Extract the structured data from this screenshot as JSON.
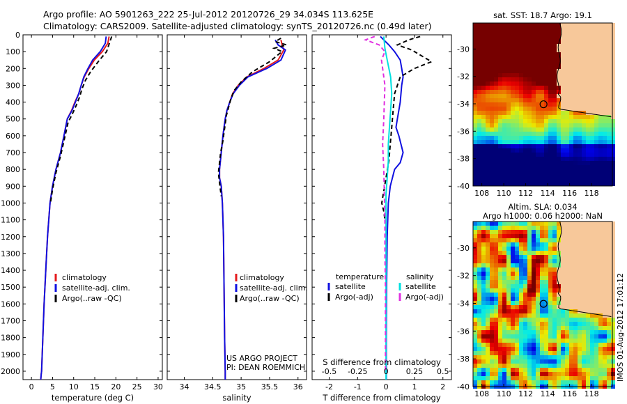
{
  "header": {
    "line1": "Argo profile: AO 5901263_222 25-Jul-2012 20120726_29 34.034S 113.625E",
    "line2": "Climatology: CARS2009. Satellite-adjusted climatology: synTS_20120726.nc (0.49d later)"
  },
  "side_label": "IMOS 01-Aug-2012 17:01:12",
  "colors": {
    "climatology": "#e41a1c",
    "satellite": "#1010e0",
    "argo": "#000000",
    "sal_sat": "#00e0e0",
    "sal_argo": "#e030e0"
  },
  "chart_data": [
    {
      "type": "line",
      "name": "temperature-panel",
      "xlabel": "temperature (deg C)",
      "ylabel": "",
      "xlim": [
        -2,
        31
      ],
      "ylim": [
        2050,
        0
      ],
      "xticks": [
        0,
        5,
        10,
        15,
        20,
        25,
        30
      ],
      "yticks": [
        0,
        100,
        200,
        300,
        400,
        500,
        600,
        700,
        800,
        900,
        1000,
        1100,
        1200,
        1300,
        1400,
        1500,
        1600,
        1700,
        1800,
        1900,
        2000
      ],
      "legend": [
        "climatology",
        "satellite-adj. clim.",
        "Argo(..raw -QC)"
      ],
      "legend_placement": "lower-center",
      "series": [
        {
          "name": "climatology",
          "color": "#e41a1c",
          "x": [
            18.4,
            18.1,
            16.8,
            14.9,
            13.6,
            12.5,
            11.8,
            11.2,
            10.3,
            9.5,
            8.5,
            7.7,
            6.9,
            5.8,
            5.0,
            4.4,
            3.8,
            3.4,
            3.0,
            2.7,
            2.4,
            2.3,
            2.2
          ],
          "y": [
            10,
            50,
            100,
            150,
            200,
            250,
            300,
            350,
            400,
            450,
            500,
            600,
            700,
            800,
            900,
            1000,
            1200,
            1400,
            1600,
            1800,
            2000,
            2020,
            2050
          ]
        },
        {
          "name": "satellite-adj. clim.",
          "color": "#1010e0",
          "x": [
            17.7,
            17.5,
            16.3,
            14.5,
            13.4,
            12.4,
            11.8,
            11.2,
            10.4,
            9.6,
            8.5,
            7.7,
            6.9,
            5.8,
            5.0,
            4.4,
            3.8,
            3.4,
            3.0,
            2.7,
            2.4,
            2.3,
            2.2
          ],
          "y": [
            10,
            50,
            100,
            150,
            200,
            250,
            300,
            350,
            400,
            450,
            500,
            600,
            700,
            800,
            900,
            1000,
            1200,
            1400,
            1600,
            1800,
            2000,
            2020,
            2050
          ]
        },
        {
          "name": "Argo(..raw -QC)",
          "color": "#000000",
          "dash": "6,4",
          "x": [
            19.0,
            18.6,
            17.8,
            15.8,
            14.0,
            12.8,
            12.0,
            11.4,
            10.6,
            9.7,
            8.7,
            7.8,
            6.9,
            5.8,
            5.0,
            4.5
          ],
          "y": [
            10,
            40,
            100,
            160,
            220,
            270,
            320,
            370,
            420,
            470,
            520,
            620,
            720,
            820,
            920,
            1000
          ]
        }
      ]
    },
    {
      "type": "line",
      "name": "salinity-panel",
      "xlabel": "salinity",
      "ylabel": "",
      "xlim": [
        33.7,
        36.15
      ],
      "ylim": [
        2050,
        0
      ],
      "xticks": [
        34,
        34.5,
        35,
        35.5,
        36
      ],
      "xticklabels": [
        "34",
        "34.5",
        "35",
        "35.5",
        "36"
      ],
      "legend": [
        "climatology",
        "satellite-adj. clim.",
        "Argo(..raw -QC)"
      ],
      "legend_placement": "lower-center",
      "annotation": [
        "US ARGO PROJECT",
        "PI: DEAN ROEMMICH"
      ],
      "series": [
        {
          "name": "climatology",
          "color": "#e41a1c",
          "x": [
            35.7,
            35.72,
            35.75,
            35.65,
            35.4,
            35.1,
            34.95,
            34.85,
            34.8,
            34.75,
            34.72,
            34.7,
            34.68,
            34.65,
            34.62,
            34.62,
            34.65,
            34.67,
            34.69,
            34.7,
            34.71,
            34.72,
            34.72
          ],
          "y": [
            30,
            60,
            90,
            150,
            200,
            250,
            300,
            350,
            400,
            450,
            500,
            550,
            600,
            700,
            800,
            850,
            900,
            1000,
            1200,
            1500,
            1800,
            2000,
            2050
          ]
        },
        {
          "name": "satellite-adj. clim.",
          "color": "#1010e0",
          "x": [
            35.6,
            35.65,
            35.78,
            35.7,
            35.45,
            35.12,
            34.97,
            34.86,
            34.8,
            34.75,
            34.72,
            34.7,
            34.68,
            34.65,
            34.62,
            34.62,
            34.65,
            34.67,
            34.69,
            34.7,
            34.71,
            34.72,
            34.72
          ],
          "y": [
            30,
            60,
            90,
            150,
            200,
            250,
            300,
            350,
            400,
            450,
            500,
            550,
            600,
            700,
            800,
            850,
            900,
            1000,
            1200,
            1500,
            1800,
            2000,
            2050
          ]
        },
        {
          "name": "Argo(..raw -QC)",
          "color": "#000000",
          "dash": "6,4",
          "x": [
            35.7,
            35.6,
            35.8,
            35.58,
            35.72,
            35.68,
            35.5,
            35.2,
            35.0,
            34.88,
            34.82,
            34.78,
            34.74,
            34.72,
            34.7,
            34.68,
            34.64,
            34.62,
            34.6,
            34.62,
            34.65
          ],
          "y": [
            20,
            40,
            60,
            80,
            100,
            110,
            160,
            220,
            280,
            330,
            380,
            430,
            480,
            530,
            580,
            630,
            700,
            760,
            820,
            880,
            960
          ]
        }
      ]
    },
    {
      "type": "line",
      "name": "difference-panel",
      "xlabel": "T difference from climatology",
      "x2label": "S difference from climatology",
      "xlim": [
        -2.6,
        2.3
      ],
      "x2lim": [
        -0.65,
        0.575
      ],
      "ylim": [
        2050,
        0
      ],
      "xticks": [
        -2,
        -1,
        0,
        1,
        2
      ],
      "x2ticks": [
        -0.5,
        -0.25,
        0,
        0.25,
        0.5
      ],
      "x2ticklabels": [
        "-0.5",
        "-0.25",
        "0",
        "0.25",
        "0.5"
      ],
      "legend_left": {
        "title": "temperature",
        "items": [
          "satellite",
          "Argo(-adj)"
        ]
      },
      "legend_right": {
        "title": "salinity",
        "items": [
          "satellite",
          "Argo(-adj)"
        ]
      },
      "legend_placement": "lower-center",
      "series": [
        {
          "name": "temperature satellite",
          "color": "#1010e0",
          "x": [
            -0.2,
            0.1,
            0.3,
            0.5,
            0.55,
            0.6,
            0.55,
            0.5,
            0.4,
            0.35,
            0.45,
            0.6,
            0.5,
            0.3,
            0.15,
            0.08,
            0.04,
            0.02,
            0.01,
            0.01
          ],
          "y": [
            10,
            60,
            100,
            150,
            200,
            250,
            300,
            400,
            500,
            550,
            600,
            700,
            760,
            800,
            900,
            1000,
            1200,
            1500,
            1800,
            2050
          ]
        },
        {
          "name": "temperature Argo(-adj)",
          "color": "#000000",
          "dash": "6,4",
          "x": [
            1.2,
            0.8,
            0.4,
            0.9,
            1.6,
            1.0,
            0.5,
            0.3,
            0.25,
            0.2,
            0.15,
            0.1,
            0.0,
            -0.05,
            -0.1,
            -0.15,
            -0.08,
            -0.03
          ],
          "y": [
            10,
            30,
            60,
            90,
            160,
            200,
            250,
            350,
            450,
            550,
            650,
            750,
            850,
            900,
            950,
            1000,
            1050,
            1110
          ]
        },
        {
          "name": "salinity satellite",
          "color": "#00e0e0",
          "x": [
            -0.02,
            -0.01,
            0.01,
            0.04,
            0.05,
            0.04,
            0.03,
            0.02,
            0.02,
            0.01,
            0.0,
            0.0,
            0.0,
            0.0,
            0.0,
            0.0
          ],
          "y": [
            10,
            80,
            150,
            250,
            350,
            450,
            550,
            650,
            750,
            850,
            950,
            1100,
            1300,
            1600,
            1900,
            2050
          ]
        },
        {
          "name": "salinity Argo(-adj)",
          "color": "#e030e0",
          "dash": "6,4",
          "x": [
            -0.1,
            -0.18,
            -0.06,
            -0.01,
            -0.04,
            -0.01,
            -0.02,
            -0.03,
            -0.02,
            -0.015,
            -0.01,
            -0.01,
            -0.005,
            -0.005,
            -0.005
          ],
          "y": [
            10,
            30,
            60,
            100,
            150,
            300,
            500,
            650,
            800,
            950,
            1100,
            1300,
            1500,
            1700,
            2000
          ]
        }
      ]
    },
    {
      "type": "heatmap",
      "name": "sst-map",
      "title": "sat. SST: 18.7 Argo: 19.1",
      "xlim": [
        107.2,
        119.9
      ],
      "ylim": [
        -40,
        -28.1
      ],
      "xticks": [
        108,
        110,
        112,
        114,
        116,
        118
      ],
      "yticks": [
        -30,
        -32,
        -34,
        -36,
        -38,
        -40
      ],
      "argo_position": [
        113.625,
        -34.034
      ]
    },
    {
      "type": "heatmap",
      "name": "sla-map",
      "title": "Altim. SLA: 0.034",
      "subtitle": "Argo h1000: 0.06 h2000: NaN",
      "xlim": [
        107.2,
        119.9
      ],
      "ylim": [
        -40,
        -28.1
      ],
      "xticks": [
        108,
        110,
        112,
        114,
        116,
        118
      ],
      "yticks": [
        -30,
        -32,
        -34,
        -36,
        -38,
        -40
      ],
      "argo_position": [
        113.625,
        -34.034
      ]
    }
  ]
}
